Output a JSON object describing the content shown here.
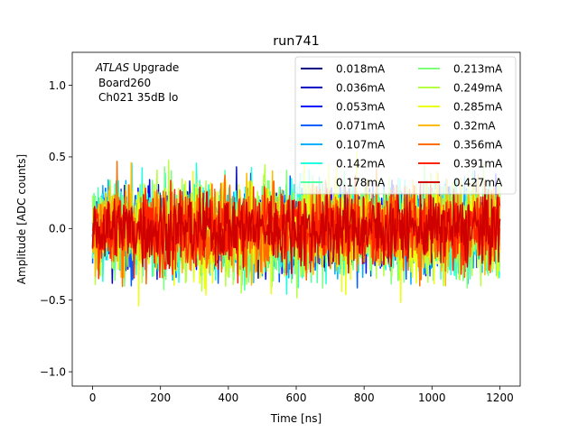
{
  "chart_data": {
    "type": "line",
    "title": "run741",
    "xlabel": "Time [ns]",
    "ylabel": "Amplitude [ADC counts]",
    "xlim": [
      -60,
      1260
    ],
    "ylim": [
      -1.1,
      1.23
    ],
    "x_ticks": [
      0,
      200,
      400,
      600,
      800,
      1000,
      1200
    ],
    "y_ticks": [
      -1.0,
      -0.5,
      0.0,
      0.5,
      1.0
    ],
    "x_tick_labels": [
      "0",
      "200",
      "400",
      "600",
      "800",
      "1000",
      "1200"
    ],
    "y_tick_labels": [
      "−1.0",
      "−0.5",
      "0.0",
      "0.5",
      "1.0"
    ],
    "annotation": {
      "line1_italic": "ATLAS",
      "line1_rest": " Upgrade",
      "line2": "Board260",
      "line3": "Ch021 35dB lo"
    },
    "time_range_ns": [
      0,
      1200
    ],
    "legend_location": "upper-right",
    "legend_columns": 2,
    "series": [
      {
        "name": "0.018mA",
        "color": "#000080",
        "amplitude": 0.45
      },
      {
        "name": "0.036mA",
        "color": "#0000c4",
        "amplitude": 0.52
      },
      {
        "name": "0.053mA",
        "color": "#0010ff",
        "amplitude": 0.55
      },
      {
        "name": "0.071mA",
        "color": "#0060ff",
        "amplitude": 0.6
      },
      {
        "name": "0.107mA",
        "color": "#00b0ff",
        "amplitude": 0.62
      },
      {
        "name": "0.142mA",
        "color": "#1fffe0",
        "amplitude": 0.7
      },
      {
        "name": "0.178mA",
        "color": "#50ffa6",
        "amplitude": 0.65
      },
      {
        "name": "0.213mA",
        "color": "#7dff7a",
        "amplitude": 0.7
      },
      {
        "name": "0.249mA",
        "color": "#b4ff43",
        "amplitude": 0.72
      },
      {
        "name": "0.285mA",
        "color": "#ecff0b",
        "amplitude": 0.7
      },
      {
        "name": "0.32mA",
        "color": "#ffb900",
        "amplitude": 0.62
      },
      {
        "name": "0.356mA",
        "color": "#ff6c00",
        "amplitude": 0.6
      },
      {
        "name": "0.391mA",
        "color": "#ff2300",
        "amplitude": 0.55
      },
      {
        "name": "0.427mA",
        "color": "#cf0000",
        "amplitude": 0.5
      }
    ]
  }
}
